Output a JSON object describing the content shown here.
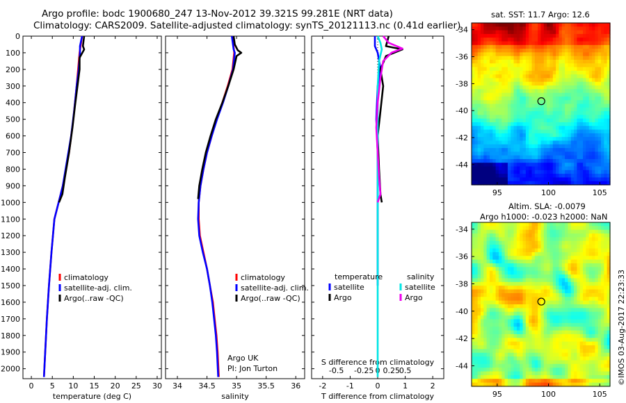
{
  "title_line1": "Argo profile: bodc 1900680_247 13-Nov-2012 39.321S 99.281E (NRT data)",
  "title_line2": "Climatology: CARS2009. Satellite-adjusted climatology: synTS_20121113.nc (0.41d earlier)",
  "map1_title": "sat. SST: 11.7 Argo: 12.6",
  "map2_title_line1": "Altim. SLA: -0.0079",
  "map2_title_line2": "Argo h1000: -0.023 h2000: NaN",
  "credit": "©IMOS 03-Aug-2017 22:23:33",
  "chart_data": [
    {
      "type": "line",
      "xlabel": "temperature (deg C)",
      "xlim": [
        -2,
        31
      ],
      "xticks": [
        0,
        5,
        10,
        15,
        20,
        25,
        30
      ],
      "ylim": [
        2060,
        0
      ],
      "yticks": [
        0,
        100,
        200,
        300,
        400,
        500,
        600,
        700,
        800,
        900,
        1000,
        1100,
        1200,
        1300,
        1400,
        1500,
        1600,
        1700,
        1800,
        1900,
        2000
      ],
      "legend": [
        "climatology",
        "satellite-adj. clim.",
        "Argo(..raw -QC)"
      ],
      "series": [
        {
          "name": "climatology",
          "color": "#ff0000",
          "points": [
            [
              12.1,
              0
            ],
            [
              11.5,
              100
            ],
            [
              10.8,
              300
            ],
            [
              10,
              500
            ],
            [
              9,
              700
            ],
            [
              7.5,
              900
            ],
            [
              6.5,
              1000
            ],
            [
              5.5,
              1100
            ],
            [
              4.8,
              1300
            ],
            [
              4.2,
              1500
            ],
            [
              3.7,
              1700
            ],
            [
              3.3,
              1900
            ],
            [
              3,
              2050
            ]
          ]
        },
        {
          "name": "satellite-adj. clim.",
          "color": "#0000ff",
          "points": [
            [
              12.1,
              0
            ],
            [
              11.6,
              60
            ],
            [
              11.6,
              100
            ],
            [
              11.3,
              200
            ],
            [
              10.8,
              300
            ],
            [
              10.2,
              450
            ],
            [
              9.5,
              600
            ],
            [
              8.5,
              750
            ],
            [
              7.5,
              900
            ],
            [
              6.5,
              1000
            ],
            [
              5.5,
              1100
            ],
            [
              4.8,
              1300
            ],
            [
              4.2,
              1500
            ],
            [
              3.7,
              1700
            ],
            [
              3.3,
              1900
            ],
            [
              3,
              2050
            ]
          ]
        },
        {
          "name": "Argo(..raw -QC)",
          "color": "#000000",
          "points": [
            [
              12.6,
              0
            ],
            [
              12.3,
              60
            ],
            [
              12.6,
              80
            ],
            [
              11.5,
              130
            ],
            [
              11.5,
              200
            ],
            [
              11,
              300
            ],
            [
              10.4,
              420
            ],
            [
              9.8,
              550
            ],
            [
              9,
              700
            ],
            [
              8,
              850
            ],
            [
              7.4,
              950
            ],
            [
              6.6,
              1000
            ]
          ]
        }
      ]
    },
    {
      "type": "line",
      "xlabel": "salinity",
      "xlim": [
        33.8,
        36.15
      ],
      "xticks": [
        34,
        34.5,
        35,
        35.5,
        36
      ],
      "ylim": [
        2060,
        0
      ],
      "legend": [
        "climatology",
        "satellite-adj. clim.",
        "Argo(..raw -QC)"
      ],
      "annotation": [
        "Argo UK",
        "PI: Jon Turton"
      ],
      "series": [
        {
          "name": "climatology",
          "color": "#ff0000",
          "points": [
            [
              34.93,
              0
            ],
            [
              34.96,
              100
            ],
            [
              34.93,
              200
            ],
            [
              34.85,
              300
            ],
            [
              34.76,
              400
            ],
            [
              34.66,
              500
            ],
            [
              34.58,
              600
            ],
            [
              34.5,
              700
            ],
            [
              34.44,
              800
            ],
            [
              34.39,
              900
            ],
            [
              34.36,
              1000
            ],
            [
              34.36,
              1100
            ],
            [
              34.38,
              1200
            ],
            [
              34.44,
              1300
            ],
            [
              34.5,
              1400
            ],
            [
              34.55,
              1500
            ],
            [
              34.6,
              1600
            ],
            [
              34.63,
              1700
            ],
            [
              34.66,
              1800
            ],
            [
              34.68,
              1900
            ],
            [
              34.7,
              2050
            ]
          ]
        },
        {
          "name": "satellite-adj. clim.",
          "color": "#0000ff",
          "points": [
            [
              34.92,
              0
            ],
            [
              34.95,
              80
            ],
            [
              34.97,
              100
            ],
            [
              34.94,
              200
            ],
            [
              34.86,
              300
            ],
            [
              34.77,
              400
            ],
            [
              34.67,
              500
            ],
            [
              34.58,
              600
            ],
            [
              34.5,
              700
            ],
            [
              34.44,
              800
            ],
            [
              34.39,
              900
            ],
            [
              34.36,
              1000
            ],
            [
              34.35,
              1100
            ],
            [
              34.37,
              1200
            ],
            [
              34.43,
              1300
            ],
            [
              34.5,
              1400
            ],
            [
              34.55,
              1500
            ],
            [
              34.59,
              1600
            ],
            [
              34.62,
              1700
            ],
            [
              34.65,
              1800
            ],
            [
              34.67,
              1900
            ],
            [
              34.69,
              2050
            ]
          ]
        },
        {
          "name": "Argo(..raw -QC)",
          "color": "#000000",
          "points": [
            [
              34.95,
              0
            ],
            [
              34.97,
              50
            ],
            [
              35.02,
              85
            ],
            [
              35.08,
              100
            ],
            [
              35,
              120
            ],
            [
              34.95,
              200
            ],
            [
              34.86,
              300
            ],
            [
              34.76,
              400
            ],
            [
              34.65,
              500
            ],
            [
              34.56,
              600
            ],
            [
              34.48,
              700
            ],
            [
              34.42,
              800
            ],
            [
              34.37,
              900
            ],
            [
              34.35,
              980
            ]
          ]
        }
      ]
    },
    {
      "type": "line",
      "xlabel": "T difference from climatology",
      "xlabel2": "S difference from climatology",
      "xlim": [
        -2.4,
        2.4
      ],
      "xticks": [
        -2,
        -1,
        0,
        1,
        2
      ],
      "xticklabels_s": [
        "-0.5",
        "-0.25",
        "0",
        "0.25",
        "0.5"
      ],
      "ylim": [
        2060,
        0
      ],
      "legend": {
        "temperature": [
          "satellite",
          "Argo"
        ],
        "salinity": [
          "satellite",
          "Argo"
        ]
      },
      "series": [
        {
          "name": "satellite",
          "group": "temperature",
          "color": "#0000ff",
          "points": [
            [
              -0.1,
              0
            ],
            [
              -0.1,
              60
            ],
            [
              0.0,
              100
            ],
            [
              0.1,
              200
            ],
            [
              0.0,
              300
            ],
            [
              -0.05,
              500
            ],
            [
              0.0,
              700
            ],
            [
              0.0,
              900
            ],
            [
              0.0,
              1100
            ],
            [
              0.0,
              1300
            ],
            [
              0.0,
              1500
            ]
          ]
        },
        {
          "name": "Argo",
          "group": "temperature",
          "color": "#000000",
          "points": [
            [
              0.4,
              0
            ],
            [
              0.3,
              60
            ],
            [
              0.9,
              80
            ],
            [
              0.3,
              120
            ],
            [
              0.1,
              200
            ],
            [
              0.2,
              300
            ],
            [
              0.1,
              450
            ],
            [
              0.0,
              600
            ],
            [
              0.05,
              800
            ],
            [
              0.1,
              950
            ],
            [
              0.15,
              1000
            ]
          ]
        },
        {
          "name": "satellite",
          "group": "salinity",
          "color": "#00e5e5",
          "points": [
            [
              0.0,
              0
            ],
            [
              0.1,
              40
            ],
            [
              0.15,
              80
            ],
            [
              0.05,
              150
            ],
            [
              0.0,
              300
            ],
            [
              0.0,
              600
            ],
            [
              0.0,
              900
            ],
            [
              0.0,
              1200
            ],
            [
              0.0,
              1500
            ],
            [
              0.0,
              1800
            ],
            [
              0.0,
              2050
            ]
          ]
        },
        {
          "name": "Argo",
          "group": "salinity",
          "color": "#ee00ee",
          "points": [
            [
              0.2,
              0
            ],
            [
              0.4,
              40
            ],
            [
              0.9,
              75
            ],
            [
              0.5,
              100
            ],
            [
              0.2,
              150
            ],
            [
              0.1,
              250
            ],
            [
              0.0,
              400
            ],
            [
              -0.05,
              550
            ],
            [
              0.0,
              700
            ],
            [
              0.05,
              850
            ],
            [
              0.1,
              950
            ],
            [
              0.0,
              1000
            ]
          ]
        }
      ]
    },
    {
      "type": "heatmap",
      "title": "sat. SST: 11.7 Argo: 12.6",
      "xlim": [
        92.5,
        106
      ],
      "xticks": [
        95,
        100,
        105
      ],
      "ylim": [
        -45.5,
        -33.5
      ],
      "yticks": [
        -34,
        -36,
        -38,
        -40,
        -42,
        -44
      ],
      "marker": [
        99.3,
        -39.3
      ]
    },
    {
      "type": "heatmap",
      "title": "Altim. SLA: -0.0079",
      "xlim": [
        92.5,
        106
      ],
      "xticks": [
        95,
        100,
        105
      ],
      "ylim": [
        -45.5,
        -33.5
      ],
      "yticks": [
        -34,
        -36,
        -38,
        -40,
        -42,
        -44
      ],
      "marker": [
        99.3,
        -39.3
      ]
    }
  ]
}
